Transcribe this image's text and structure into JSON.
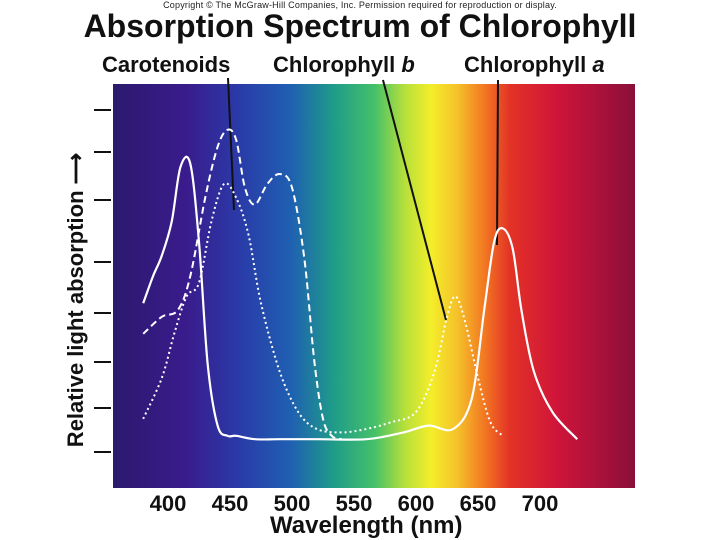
{
  "page": {
    "copyright": "Copyright © The McGraw-Hill Companies, Inc. Permission required for reproduction or display.",
    "title": "Absorption Spectrum of Chlorophyll"
  },
  "chart_data": {
    "type": "line",
    "title": "Absorption Spectrum of Chlorophyll",
    "xlabel": "Wavelength (nm)",
    "ylabel": "Relative light absorption",
    "xlim": [
      350,
      750
    ],
    "ylim": [
      0,
      1
    ],
    "x_ticks": [
      400,
      450,
      500,
      550,
      600,
      650,
      700
    ],
    "x_tick_labels": [
      "400",
      "450",
      "500",
      "550",
      "600",
      "650",
      "700"
    ],
    "y_tick_labels": [],
    "grid": false,
    "background": "visible-light spectrum gradient",
    "series": [
      {
        "name": "Carotenoids",
        "style": "dashed",
        "color": "#ffffff",
        "x": [
          380,
          395,
          408,
          418,
          430,
          440,
          448,
          455,
          462,
          470,
          480,
          490,
          500,
          510,
          518,
          525,
          532,
          540
        ],
        "y": [
          0.33,
          0.38,
          0.4,
          0.5,
          0.73,
          0.88,
          0.93,
          0.9,
          0.76,
          0.71,
          0.77,
          0.8,
          0.76,
          0.55,
          0.25,
          0.08,
          0.03,
          0.02
        ]
      },
      {
        "name": "Chlorophyll b",
        "style": "dotted",
        "color": "#ffffff",
        "x": [
          380,
          395,
          405,
          415,
          425,
          435,
          445,
          455,
          465,
          475,
          490,
          505,
          520,
          540,
          560,
          580,
          600,
          615,
          625,
          632,
          640,
          650,
          660,
          670
        ],
        "y": [
          0.08,
          0.2,
          0.33,
          0.44,
          0.48,
          0.66,
          0.77,
          0.73,
          0.62,
          0.42,
          0.22,
          0.1,
          0.05,
          0.04,
          0.05,
          0.07,
          0.1,
          0.22,
          0.38,
          0.44,
          0.36,
          0.2,
          0.07,
          0.03
        ]
      },
      {
        "name": "Chlorophyll a",
        "style": "solid",
        "color": "#ffffff",
        "x": [
          380,
          388,
          395,
          403,
          410,
          418,
          425,
          432,
          440,
          448,
          455,
          470,
          490,
          520,
          560,
          590,
          610,
          630,
          645,
          655,
          663,
          670,
          678,
          685,
          695,
          710,
          730
        ],
        "y": [
          0.42,
          0.5,
          0.56,
          0.66,
          0.82,
          0.83,
          0.6,
          0.24,
          0.06,
          0.03,
          0.03,
          0.02,
          0.02,
          0.02,
          0.02,
          0.04,
          0.06,
          0.05,
          0.14,
          0.4,
          0.6,
          0.64,
          0.58,
          0.4,
          0.22,
          0.1,
          0.02
        ]
      }
    ],
    "annotations": [
      {
        "text": "Carotenoids",
        "points_to": "Carotenoids"
      },
      {
        "text_main": "Chlorophyll ",
        "text_italic": "b",
        "points_to": "Chlorophyll b"
      },
      {
        "text_main": "Chlorophyll ",
        "text_italic": "a",
        "points_to": "Chlorophyll a"
      }
    ]
  }
}
